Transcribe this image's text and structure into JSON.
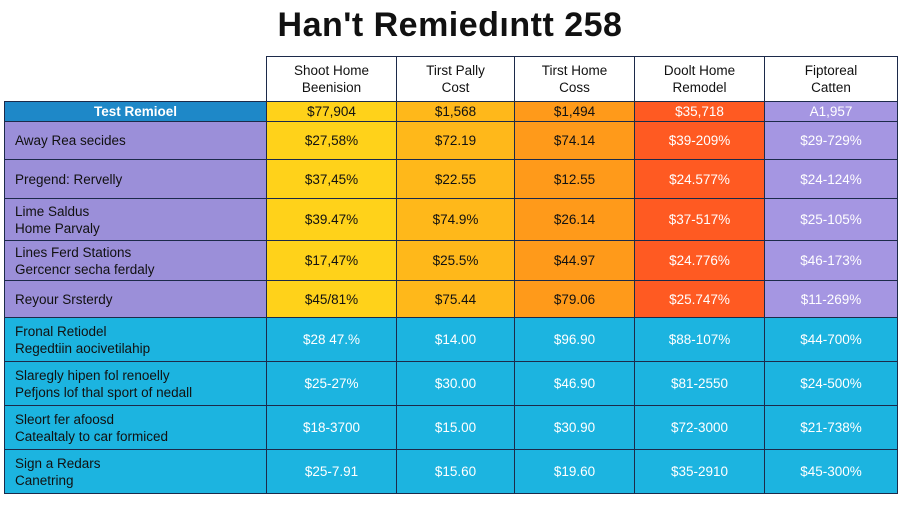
{
  "title": "Han't Remiedıntt 258",
  "columns": [
    {
      "line1": "Shoot Home",
      "line2": "Beenision"
    },
    {
      "line1": "Tirst Pally",
      "line2": "Cost"
    },
    {
      "line1": "Tirst Home",
      "line2": "Coss"
    },
    {
      "line1": "Doolt Home",
      "line2": "Remodel"
    },
    {
      "line1": "Fiptoreal",
      "line2": "Catten"
    }
  ],
  "rows": [
    {
      "label": [
        "Test Remioel"
      ],
      "values": [
        "$77,904",
        "$1,568",
        "$1,494",
        "$35,718",
        "A1,957"
      ]
    },
    {
      "label": [
        "Away Rea secides"
      ],
      "values": [
        "$27,58%",
        "$72.19",
        "$74.14",
        "$39-209%",
        "$29-729%"
      ]
    },
    {
      "label": [
        "Pregend: Rervelly"
      ],
      "values": [
        "$37,45%",
        "$22.55",
        "$12.55",
        "$24.577%",
        "$24-124%"
      ]
    },
    {
      "label": [
        "Lime Saldus",
        "Home Parvaly"
      ],
      "values": [
        "$39.47%",
        "$74.9%",
        "$26.14",
        "$37-517%",
        "$25-105%"
      ]
    },
    {
      "label": [
        "Lines Ferd Stations",
        "Gercencr secha ferdaly"
      ],
      "values": [
        "$17,47%",
        "$25.5%",
        "$44.97",
        "$24.776%",
        "$46-173%"
      ]
    },
    {
      "label": [
        "Reyour Srsterdy"
      ],
      "values": [
        "$45/81%",
        "$75.44",
        "$79.06",
        "$25.747%",
        "$11-269%"
      ]
    },
    {
      "label": [
        "Fronal Retiodel",
        "Regedtiin aocivetilahip"
      ],
      "values": [
        "$28 47.%",
        "$14.00",
        "$96.90",
        "$88-107%",
        "$44-700%"
      ]
    },
    {
      "label": [
        "Slaregly hipen fol renoelly",
        "Pefjons lof thal sport of nedall"
      ],
      "values": [
        "$25-27%",
        "$30.00",
        "$46.90",
        "$81-2550",
        "$24-500%"
      ]
    },
    {
      "label": [
        "Sleort fer afoosd",
        "Catealtaly to car formiced"
      ],
      "values": [
        "$18-3700",
        "$15.00",
        "$30.90",
        "$72-3000",
        "$21-738%"
      ]
    },
    {
      "label": [
        "Sign a Redars",
        "Canetring"
      ],
      "values": [
        "$25-7.91",
        "$15.60",
        "$19.60",
        "$35-2910",
        "$45-300%"
      ]
    }
  ],
  "colors": {
    "header_row_label": "#1e88c8",
    "purple": "#9b8fd9",
    "cyan": "#1cb4e0",
    "yellow": "#ffd21a",
    "yellow_orange": "#ffb81a",
    "orange": "#ff9a1a",
    "red_orange": "#ff5a22",
    "light_purple": "#a596e2"
  }
}
